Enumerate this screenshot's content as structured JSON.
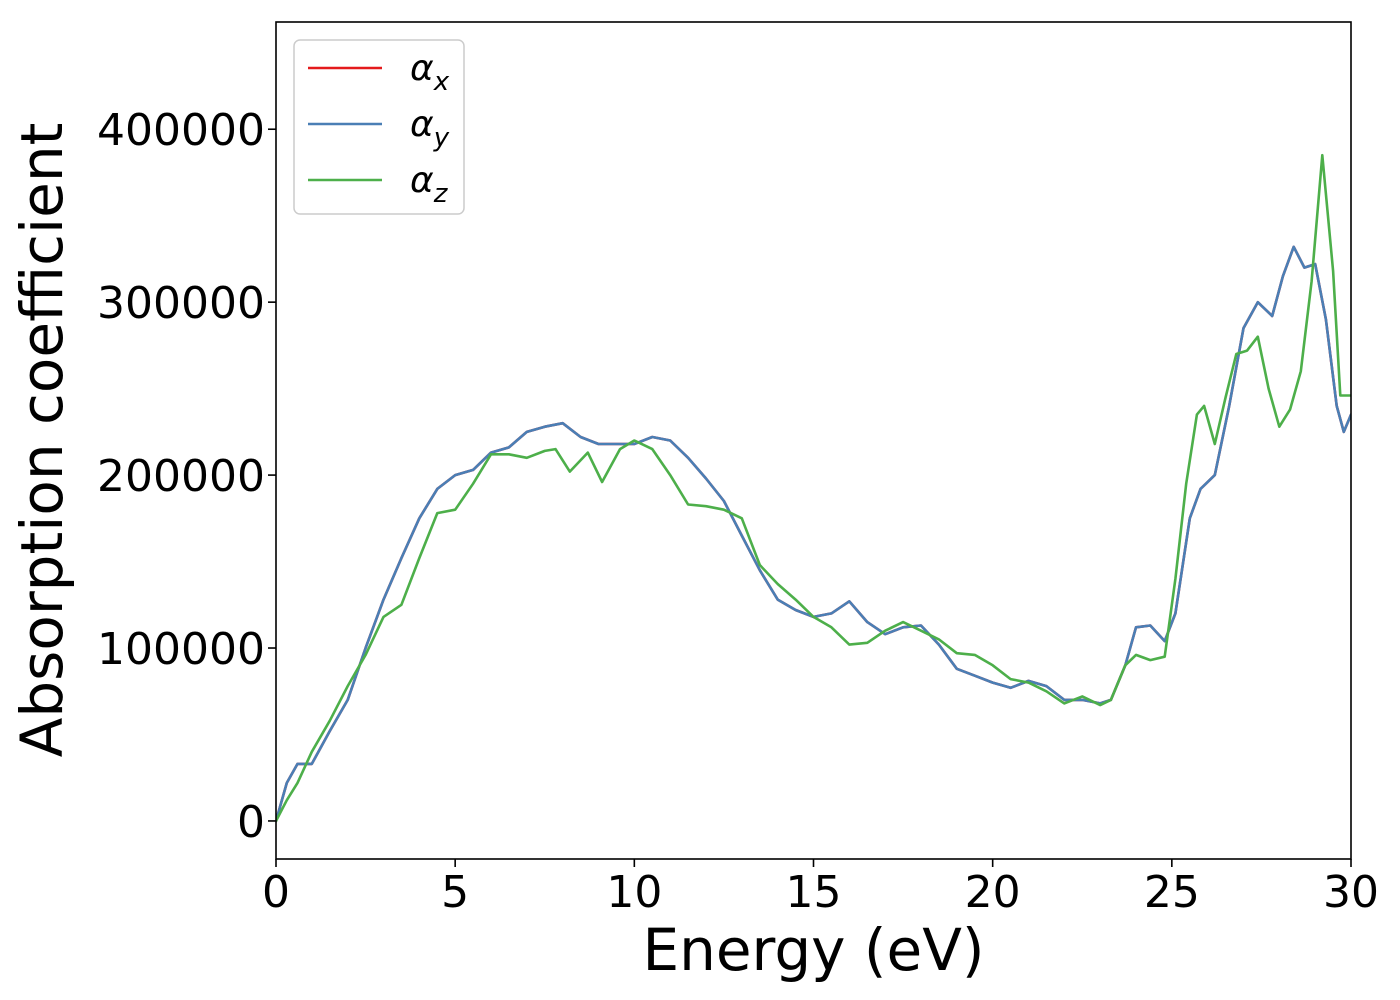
{
  "chart_data": {
    "type": "line",
    "title": "",
    "xlabel": "Energy (eV)",
    "ylabel": "Absorption coefficient",
    "xlim": [
      0,
      30
    ],
    "ylim": [
      -22000,
      462000
    ],
    "x_ticks": [
      "0",
      "5",
      "10",
      "15",
      "20",
      "25",
      "30"
    ],
    "y_ticks": [
      "0",
      "100000",
      "200000",
      "300000",
      "400000"
    ],
    "grid": false,
    "legend_position": "top-left",
    "series": [
      {
        "name": "α_x",
        "legend_symbol": "α",
        "legend_subscript": "x",
        "color": "#e41a1c",
        "x": [
          0,
          0.3,
          0.6,
          1.0,
          1.5,
          2.0,
          2.5,
          3.0,
          3.5,
          4.0,
          4.5,
          5.0,
          5.5,
          6.0,
          6.5,
          7.0,
          7.5,
          8.0,
          8.5,
          9.0,
          9.5,
          10.0,
          10.5,
          11.0,
          11.5,
          12.0,
          12.5,
          13.0,
          13.5,
          14.0,
          14.5,
          15.0,
          15.5,
          16.0,
          16.5,
          17.0,
          17.5,
          18.0,
          18.5,
          19.0,
          19.5,
          20.0,
          20.5,
          21.0,
          21.5,
          22.0,
          22.5,
          23.0,
          23.3,
          23.7,
          24.0,
          24.4,
          24.8,
          25.1,
          25.5,
          25.8,
          26.2,
          26.6,
          27.0,
          27.4,
          27.8,
          28.1,
          28.4,
          28.7,
          29.0,
          29.3,
          29.6,
          29.8,
          30.0
        ],
        "y": [
          0,
          22000,
          33000,
          33000,
          52000,
          70000,
          100000,
          128000,
          152000,
          175000,
          192000,
          200000,
          203000,
          213000,
          216000,
          225000,
          228000,
          230000,
          222000,
          218000,
          218000,
          218000,
          222000,
          220000,
          210000,
          198000,
          185000,
          165000,
          145000,
          128000,
          122000,
          118000,
          120000,
          127000,
          115000,
          108000,
          112000,
          113000,
          102000,
          88000,
          84000,
          80000,
          77000,
          81000,
          78000,
          70000,
          70000,
          68000,
          70000,
          90000,
          112000,
          113000,
          104000,
          120000,
          175000,
          192000,
          200000,
          240000,
          285000,
          300000,
          292000,
          315000,
          332000,
          320000,
          322000,
          290000,
          240000,
          225000,
          235000
        ]
      },
      {
        "name": "α_y",
        "legend_symbol": "α",
        "legend_subscript": "y",
        "color": "#4a7fb5",
        "x": [
          0,
          0.3,
          0.6,
          1.0,
          1.5,
          2.0,
          2.5,
          3.0,
          3.5,
          4.0,
          4.5,
          5.0,
          5.5,
          6.0,
          6.5,
          7.0,
          7.5,
          8.0,
          8.5,
          9.0,
          9.5,
          10.0,
          10.5,
          11.0,
          11.5,
          12.0,
          12.5,
          13.0,
          13.5,
          14.0,
          14.5,
          15.0,
          15.5,
          16.0,
          16.5,
          17.0,
          17.5,
          18.0,
          18.5,
          19.0,
          19.5,
          20.0,
          20.5,
          21.0,
          21.5,
          22.0,
          22.5,
          23.0,
          23.3,
          23.7,
          24.0,
          24.4,
          24.8,
          25.1,
          25.5,
          25.8,
          26.2,
          26.6,
          27.0,
          27.4,
          27.8,
          28.1,
          28.4,
          28.7,
          29.0,
          29.3,
          29.6,
          29.8,
          30.0
        ],
        "y": [
          0,
          22000,
          33000,
          33000,
          52000,
          70000,
          100000,
          128000,
          152000,
          175000,
          192000,
          200000,
          203000,
          213000,
          216000,
          225000,
          228000,
          230000,
          222000,
          218000,
          218000,
          218000,
          222000,
          220000,
          210000,
          198000,
          185000,
          165000,
          145000,
          128000,
          122000,
          118000,
          120000,
          127000,
          115000,
          108000,
          112000,
          113000,
          102000,
          88000,
          84000,
          80000,
          77000,
          81000,
          78000,
          70000,
          70000,
          68000,
          70000,
          90000,
          112000,
          113000,
          104000,
          120000,
          175000,
          192000,
          200000,
          240000,
          285000,
          300000,
          292000,
          315000,
          332000,
          320000,
          322000,
          290000,
          240000,
          225000,
          235000
        ]
      },
      {
        "name": "α_z",
        "legend_symbol": "α",
        "legend_subscript": "z",
        "color": "#4daf4a",
        "x": [
          0,
          0.3,
          0.6,
          1.0,
          1.5,
          2.0,
          2.5,
          3.0,
          3.5,
          4.0,
          4.5,
          5.0,
          5.5,
          6.0,
          6.5,
          7.0,
          7.5,
          7.8,
          8.2,
          8.7,
          9.1,
          9.6,
          10.0,
          10.5,
          11.0,
          11.5,
          12.0,
          12.5,
          13.0,
          13.5,
          14.0,
          14.5,
          15.0,
          15.5,
          16.0,
          16.5,
          17.0,
          17.5,
          18.0,
          18.5,
          19.0,
          19.5,
          20.0,
          20.5,
          21.0,
          21.5,
          22.0,
          22.5,
          23.0,
          23.3,
          23.7,
          24.0,
          24.4,
          24.8,
          25.1,
          25.4,
          25.7,
          25.9,
          26.2,
          26.5,
          26.8,
          27.1,
          27.4,
          27.7,
          28.0,
          28.3,
          28.6,
          28.9,
          29.2,
          29.5,
          29.7,
          30.0
        ],
        "y": [
          0,
          12000,
          22000,
          40000,
          58000,
          78000,
          96000,
          118000,
          125000,
          152000,
          178000,
          180000,
          195000,
          212000,
          212000,
          210000,
          214000,
          215000,
          202000,
          213000,
          196000,
          215000,
          220000,
          215000,
          200000,
          183000,
          182000,
          180000,
          175000,
          148000,
          137000,
          128000,
          118000,
          112000,
          102000,
          103000,
          110000,
          115000,
          110000,
          105000,
          97000,
          96000,
          90000,
          82000,
          80000,
          75000,
          68000,
          72000,
          67000,
          70000,
          90000,
          96000,
          93000,
          95000,
          140000,
          195000,
          235000,
          240000,
          218000,
          245000,
          270000,
          272000,
          280000,
          250000,
          228000,
          238000,
          260000,
          312000,
          385000,
          318000,
          246000,
          246000
        ]
      }
    ]
  }
}
